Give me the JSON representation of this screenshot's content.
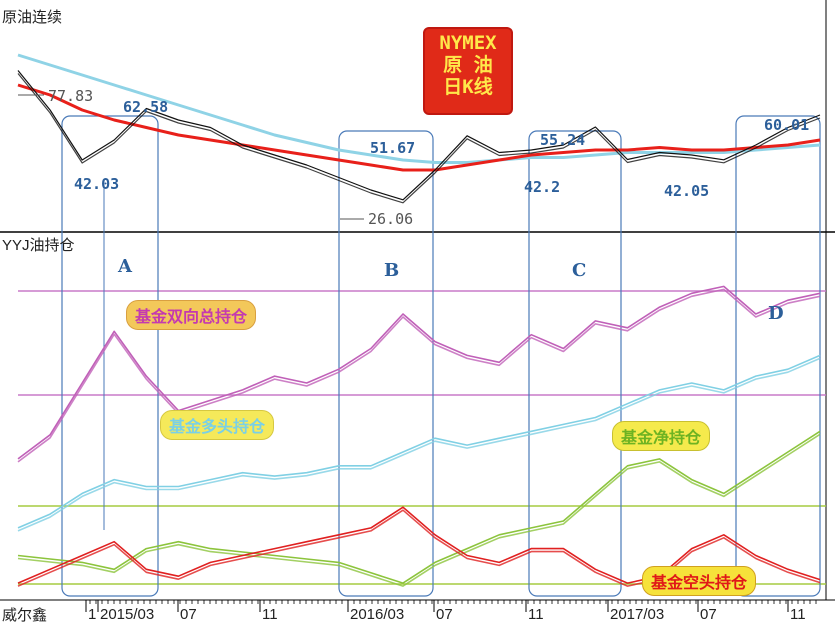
{
  "top_panel": {
    "title": "原油连续",
    "badge_lines": [
      "NYMEX",
      "原 油",
      "日K线"
    ],
    "price_labels": [
      {
        "text": "77.83",
        "kind": "gray"
      },
      {
        "text": "62.58",
        "kind": "blue"
      },
      {
        "text": "42.03",
        "kind": "blue"
      },
      {
        "text": "51.67",
        "kind": "blue"
      },
      {
        "text": "26.06",
        "kind": "gray"
      },
      {
        "text": "55.24",
        "kind": "blue"
      },
      {
        "text": "42.2",
        "kind": "blue"
      },
      {
        "text": "42.05",
        "kind": "blue"
      },
      {
        "text": "60.01",
        "kind": "blue"
      }
    ]
  },
  "bottom_panel": {
    "title": "YYJ油持仓",
    "region_letters": [
      "A",
      "B",
      "C",
      "D"
    ],
    "series_tags": {
      "total": "基金双向总持仓",
      "long": "基金多头持仓",
      "net": "基金净持仓",
      "short": "基金空头持仓"
    }
  },
  "x_axis": {
    "indicator": "威尔鑫",
    "ticks": [
      "1",
      "2015/03",
      "07",
      "11",
      "2016/03",
      "07",
      "11",
      "2017/03",
      "07",
      "11"
    ]
  },
  "colors": {
    "price": "#111111",
    "ma_red": "#e8201a",
    "ma_cyan": "#8fd3e6",
    "total": "#c060b8",
    "long": "#80d0e4",
    "net": "#8cc43c",
    "short": "#e02020",
    "box": "#4a7ab8",
    "hline_purple": "#c87ac8",
    "hline_green": "#a6cc40"
  },
  "chart_data": [
    {
      "type": "line",
      "title": "原油连续",
      "x": [
        0,
        4,
        8,
        12,
        16,
        20,
        24,
        28,
        32,
        36,
        40,
        44,
        48,
        52,
        56,
        60,
        64,
        68,
        72,
        76,
        80,
        84,
        88,
        92,
        96,
        100
      ],
      "series": [
        {
          "name": "",
          "values": [
            77.8,
            62,
            42,
            50,
            62.6,
            58,
            55,
            48,
            44,
            40,
            35,
            30,
            26.1,
            38,
            51.7,
            45,
            46,
            48,
            55.2,
            42.2,
            45,
            44,
            42.1,
            48,
            55,
            60
          ]
        },
        {
          "name": "",
          "values": [
            72,
            68,
            62,
            58,
            55,
            52,
            50,
            48,
            46,
            44,
            42,
            40,
            38,
            38,
            40,
            42,
            44,
            45,
            46,
            46,
            47,
            46,
            46,
            47,
            48,
            50
          ]
        },
        {
          "name": "",
          "values": [
            84,
            80,
            76,
            72,
            68,
            64,
            60,
            56,
            52,
            49,
            46,
            44,
            42,
            41,
            41,
            42,
            43,
            43,
            44,
            45,
            45,
            45,
            45,
            46,
            47,
            48
          ]
        }
      ]
    },
    {
      "type": "line",
      "title": "YYJ油持仓",
      "x": [
        0,
        4,
        8,
        12,
        16,
        20,
        24,
        28,
        32,
        36,
        40,
        44,
        48,
        52,
        56,
        60,
        64,
        68,
        72,
        76,
        80,
        84,
        88,
        92,
        96,
        100
      ],
      "series": [
        {
          "name": "基金双向总持仓",
          "values": [
            38,
            45,
            60,
            75,
            62,
            52,
            55,
            58,
            62,
            60,
            64,
            70,
            80,
            72,
            68,
            66,
            74,
            70,
            78,
            76,
            82,
            86,
            88,
            80,
            84,
            86
          ]
        },
        {
          "name": "基金多头持仓",
          "values": [
            18,
            22,
            28,
            32,
            30,
            30,
            32,
            34,
            33,
            34,
            36,
            36,
            40,
            44,
            42,
            44,
            46,
            48,
            50,
            54,
            58,
            60,
            58,
            62,
            64,
            68
          ]
        },
        {
          "name": "基金净持仓",
          "values": [
            10,
            9,
            8,
            6,
            12,
            14,
            12,
            11,
            10,
            9,
            8,
            5,
            2,
            8,
            12,
            16,
            18,
            20,
            28,
            36,
            38,
            32,
            28,
            34,
            40,
            46
          ]
        },
        {
          "name": "基金空头持仓",
          "values": [
            2,
            6,
            10,
            14,
            6,
            4,
            8,
            10,
            12,
            14,
            16,
            18,
            24,
            16,
            10,
            8,
            12,
            12,
            6,
            2,
            4,
            12,
            16,
            10,
            6,
            3
          ]
        }
      ]
    }
  ]
}
